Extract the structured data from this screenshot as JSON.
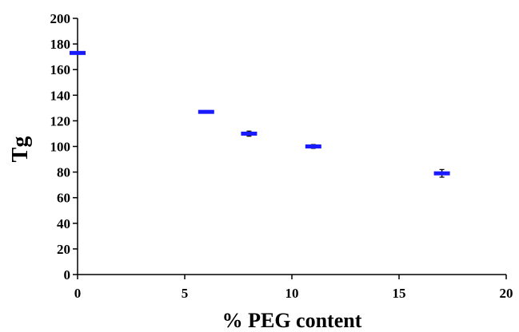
{
  "chart_data": {
    "type": "scatter",
    "title": "",
    "xlabel": "% PEG content",
    "ylabel": "Tg",
    "xlim": [
      0,
      20
    ],
    "ylim": [
      0,
      200
    ],
    "x_ticks": [
      "0",
      "5",
      "10",
      "15",
      "20"
    ],
    "y_ticks": [
      "0",
      "20",
      "40",
      "60",
      "80",
      "100",
      "120",
      "140",
      "160",
      "180",
      "200"
    ],
    "grid": false,
    "legend": "none",
    "marker": "dash",
    "marker_color": "#1a1aff",
    "series": [
      {
        "x": [
          0,
          6,
          8,
          11,
          17
        ],
        "y": [
          173,
          127,
          110,
          100,
          79
        ],
        "error": [
          0.5,
          1,
          2,
          1.5,
          3
        ]
      }
    ]
  }
}
